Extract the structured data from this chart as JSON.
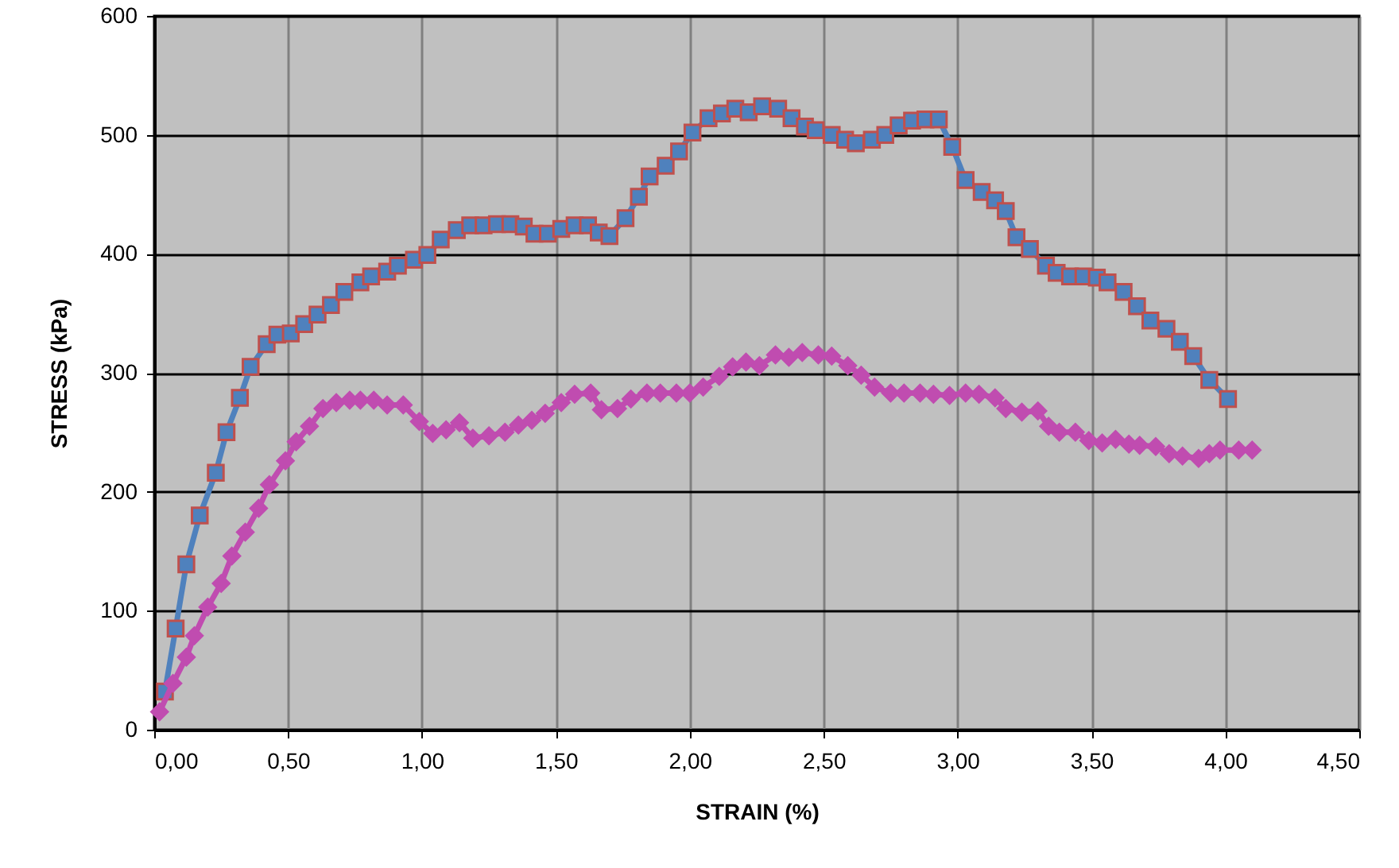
{
  "chart_data": {
    "type": "line",
    "xlabel": "STRAIN  (%)",
    "ylabel": "STRESS (kPa)",
    "xlim": [
      0,
      4.5
    ],
    "ylim": [
      0,
      600
    ],
    "xticks": [
      {
        "value": 0,
        "label": "0,00"
      },
      {
        "value": 0.5,
        "label": "0,50"
      },
      {
        "value": 1,
        "label": "1,00"
      },
      {
        "value": 1.5,
        "label": "1,50"
      },
      {
        "value": 2,
        "label": "2,00"
      },
      {
        "value": 2.5,
        "label": "2,50"
      },
      {
        "value": 3,
        "label": "3,00"
      },
      {
        "value": 3.5,
        "label": "3,50"
      },
      {
        "value": 4,
        "label": "4,00"
      },
      {
        "value": 4.5,
        "label": "4,50"
      }
    ],
    "yticks": [
      0,
      100,
      200,
      300,
      400,
      500,
      600
    ],
    "grid": true,
    "line_style": "solid",
    "series": [
      {
        "color": "#4f81bd",
        "marker": "square",
        "x": [
          0.04,
          0.08,
          0.12,
          0.17,
          0.23,
          0.27,
          0.32,
          0.36,
          0.42,
          0.46,
          0.51,
          0.56,
          0.61,
          0.66,
          0.71,
          0.77,
          0.81,
          0.87,
          0.91,
          0.97,
          1.02,
          1.07,
          1.13,
          1.18,
          1.23,
          1.28,
          1.33,
          1.38,
          1.42,
          1.47,
          1.52,
          1.57,
          1.62,
          1.66,
          1.7,
          1.76,
          1.81,
          1.85,
          1.91,
          1.96,
          2.01,
          2.07,
          2.12,
          2.17,
          2.22,
          2.27,
          2.33,
          2.38,
          2.43,
          2.47,
          2.53,
          2.58,
          2.62,
          2.68,
          2.73,
          2.78,
          2.83,
          2.88,
          2.93,
          2.98,
          3.03,
          3.09,
          3.14,
          3.18,
          3.22,
          3.27,
          3.33,
          3.37,
          3.42,
          3.47,
          3.52,
          3.56,
          3.62,
          3.67,
          3.72,
          3.78,
          3.83,
          3.88,
          3.94,
          4.01
        ],
        "values": [
          32,
          85,
          139,
          180,
          216,
          250,
          279,
          305,
          324,
          332,
          333,
          341,
          349,
          357,
          368,
          376,
          381,
          385,
          390,
          395,
          399,
          412,
          420,
          424,
          424,
          425,
          425,
          423,
          417,
          417,
          421,
          424,
          424,
          418,
          415,
          430,
          448,
          465,
          474,
          486,
          502,
          514,
          518,
          522,
          519,
          524,
          522,
          514,
          507,
          504,
          500,
          496,
          493,
          496,
          500,
          508,
          512,
          513,
          513,
          490,
          462,
          452,
          445,
          436,
          414,
          404,
          390,
          384,
          381,
          381,
          380,
          376,
          368,
          356,
          344,
          337,
          326,
          314,
          294,
          278
        ]
      },
      {
        "color": "#c04cb0",
        "marker": "diamond",
        "x": [
          0.02,
          0.07,
          0.12,
          0.15,
          0.2,
          0.25,
          0.29,
          0.34,
          0.39,
          0.43,
          0.49,
          0.53,
          0.58,
          0.63,
          0.68,
          0.73,
          0.77,
          0.82,
          0.87,
          0.93,
          0.99,
          1.04,
          1.09,
          1.14,
          1.19,
          1.25,
          1.31,
          1.36,
          1.41,
          1.46,
          1.52,
          1.57,
          1.63,
          1.67,
          1.73,
          1.78,
          1.84,
          1.89,
          1.95,
          2,
          2.05,
          2.11,
          2.16,
          2.21,
          2.26,
          2.32,
          2.37,
          2.42,
          2.48,
          2.53,
          2.59,
          2.64,
          2.69,
          2.75,
          2.8,
          2.86,
          2.91,
          2.97,
          3.03,
          3.08,
          3.14,
          3.18,
          3.24,
          3.3,
          3.34,
          3.38,
          3.44,
          3.49,
          3.54,
          3.59,
          3.64,
          3.68,
          3.74,
          3.79,
          3.84,
          3.9,
          3.94,
          3.98,
          4.05,
          4.1
        ],
        "values": [
          15,
          39,
          61,
          79,
          103,
          123,
          146,
          166,
          186,
          206,
          226,
          242,
          255,
          270,
          275,
          277,
          277,
          277,
          273,
          273,
          259,
          249,
          252,
          258,
          245,
          247,
          250,
          256,
          260,
          266,
          275,
          282,
          283,
          269,
          270,
          278,
          283,
          283,
          283,
          283,
          288,
          297,
          305,
          309,
          306,
          315,
          313,
          317,
          315,
          314,
          306,
          298,
          288,
          283,
          283,
          283,
          282,
          281,
          283,
          282,
          279,
          270,
          267,
          268,
          255,
          250,
          250,
          243,
          241,
          244,
          240,
          239,
          238,
          232,
          230,
          228,
          232,
          235,
          235,
          235
        ]
      }
    ]
  }
}
